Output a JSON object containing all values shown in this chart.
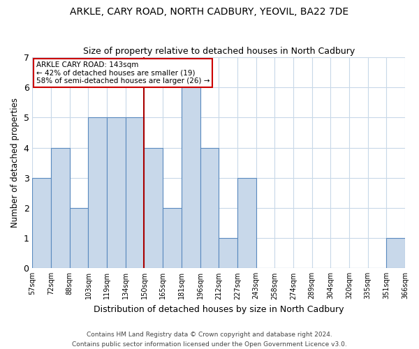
{
  "title": "ARKLE, CARY ROAD, NORTH CADBURY, YEOVIL, BA22 7DE",
  "subtitle": "Size of property relative to detached houses in North Cadbury",
  "xlabel": "Distribution of detached houses by size in North Cadbury",
  "ylabel": "Number of detached properties",
  "categories": [
    "57sqm",
    "72sqm",
    "88sqm",
    "103sqm",
    "119sqm",
    "134sqm",
    "150sqm",
    "165sqm",
    "181sqm",
    "196sqm",
    "212sqm",
    "227sqm",
    "243sqm",
    "258sqm",
    "274sqm",
    "289sqm",
    "304sqm",
    "320sqm",
    "335sqm",
    "351sqm",
    "366sqm"
  ],
  "values": [
    3,
    4,
    2,
    5,
    5,
    5,
    4,
    2,
    6,
    4,
    1,
    3,
    0,
    0,
    0,
    0,
    0,
    0,
    0,
    1
  ],
  "bar_color": "#c8d8ea",
  "bar_edgecolor": "#5a8abf",
  "subject_line_idx": 6,
  "subject_line_color": "#aa0000",
  "ylim": [
    0,
    7
  ],
  "yticks": [
    0,
    1,
    2,
    3,
    4,
    5,
    6,
    7
  ],
  "annotation_title": "ARKLE CARY ROAD: 143sqm",
  "annotation_line1": "← 42% of detached houses are smaller (19)",
  "annotation_line2": "58% of semi-detached houses are larger (26) →",
  "annotation_box_edgecolor": "#cc0000",
  "footer_line1": "Contains HM Land Registry data © Crown copyright and database right 2024.",
  "footer_line2": "Contains public sector information licensed under the Open Government Licence v3.0.",
  "background_color": "#ffffff",
  "grid_color": "#c8d8e8"
}
